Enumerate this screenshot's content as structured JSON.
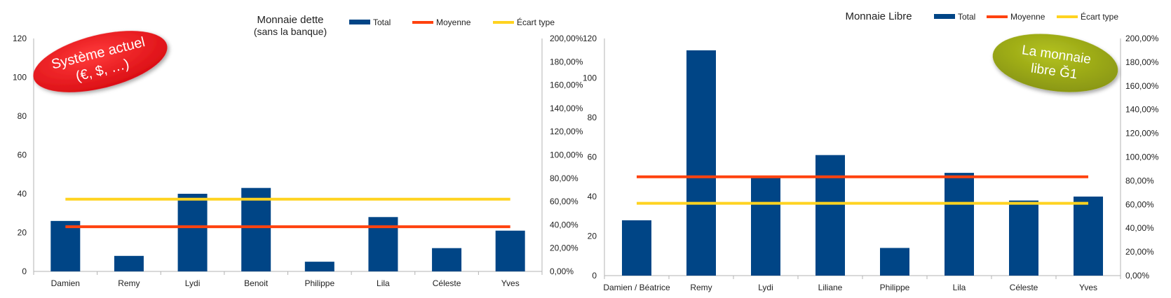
{
  "colors": {
    "total": "#004586",
    "moyenne": "#ff420e",
    "ecart": "#ffd320",
    "axis": "#b3b3b3",
    "left_badge": "#e8141c",
    "right_badge": "#9aa814"
  },
  "chart_data": [
    {
      "type": "bar",
      "title": "Monnaie dette",
      "subtitle": "(sans la banque)",
      "badge": {
        "lines": [
          "Système actuel",
          "(€, $, …)"
        ]
      },
      "categories": [
        "Damien",
        "Remy",
        "Lydi",
        "Benoit",
        "Philippe",
        "Lila",
        "Céleste",
        "Yves"
      ],
      "series": [
        {
          "name": "Total",
          "kind": "bar",
          "axis": "left",
          "values": [
            26,
            8,
            40,
            43,
            5,
            28,
            12,
            21
          ]
        },
        {
          "name": "Moyenne",
          "kind": "line",
          "axis": "left",
          "values": [
            23,
            23,
            23,
            23,
            23,
            23,
            23,
            23
          ]
        },
        {
          "name": "Écart type",
          "kind": "line",
          "axis": "right",
          "values": [
            0.62,
            0.62,
            0.62,
            0.62,
            0.62,
            0.62,
            0.62,
            0.62
          ]
        }
      ],
      "ylim": [
        0,
        120
      ],
      "yticks": [
        "0",
        "20",
        "40",
        "60",
        "80",
        "100",
        "120"
      ],
      "y2lim": [
        0,
        2
      ],
      "y2ticks": [
        "0,00%",
        "20,00%",
        "40,00%",
        "60,00%",
        "80,00%",
        "100,00%",
        "120,00%",
        "140,00%",
        "160,00%",
        "180,00%",
        "200,00%"
      ],
      "legend": "top-right",
      "grid": false
    },
    {
      "type": "bar",
      "title": "Monnaie Libre",
      "badge": {
        "lines": [
          "La monnaie",
          "libre Ğ1"
        ]
      },
      "categories": [
        "Damien / Béatrice",
        "Remy",
        "Lydi",
        "Liliane",
        "Philippe",
        "Lila",
        "Céleste",
        "Yves"
      ],
      "series": [
        {
          "name": "Total",
          "kind": "bar",
          "axis": "left",
          "values": [
            28,
            114,
            50,
            61,
            14,
            52,
            38,
            40
          ]
        },
        {
          "name": "Moyenne",
          "kind": "line",
          "axis": "left",
          "values": [
            50,
            50,
            50,
            50,
            50,
            50,
            50,
            50
          ]
        },
        {
          "name": "Écart type",
          "kind": "line",
          "axis": "right",
          "values": [
            0.61,
            0.61,
            0.61,
            0.61,
            0.61,
            0.61,
            0.61,
            0.61
          ]
        }
      ],
      "ylim": [
        0,
        120
      ],
      "yticks": [
        "0",
        "20",
        "40",
        "60",
        "80",
        "100",
        "120"
      ],
      "y2lim": [
        0,
        2
      ],
      "y2ticks": [
        "0,00%",
        "20,00%",
        "40,00%",
        "60,00%",
        "80,00%",
        "100,00%",
        "120,00%",
        "140,00%",
        "160,00%",
        "180,00%",
        "200,00%"
      ],
      "legend": "top-right",
      "grid": false
    }
  ]
}
